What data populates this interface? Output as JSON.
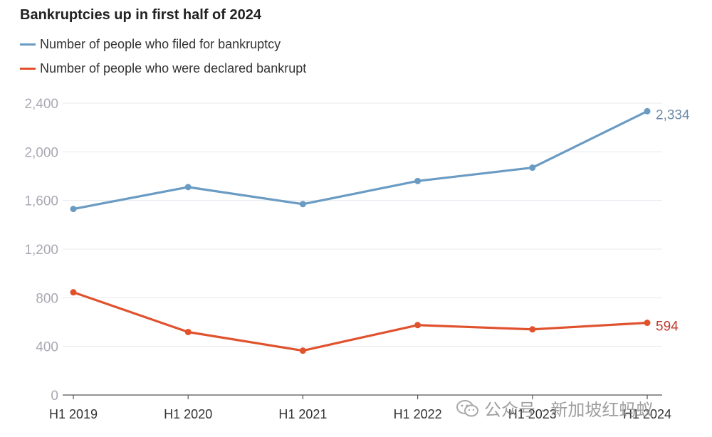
{
  "chart_data": {
    "type": "line",
    "title": "Bankruptcies up in first half of 2024",
    "categories": [
      "H1 2019",
      "H1 2020",
      "H1 2021",
      "H1 2022",
      "H1 2023",
      "H1 2024"
    ],
    "series": [
      {
        "name": "Number of people who filed for bankruptcy",
        "color": "#6a9bc3",
        "values": [
          1530,
          1710,
          1570,
          1760,
          1870,
          2334
        ],
        "end_label": "2,334"
      },
      {
        "name": "Number of people who were declared bankrupt",
        "color": "#e0522e",
        "values": [
          845,
          518,
          365,
          575,
          540,
          594
        ],
        "end_label": "594"
      }
    ],
    "ylim": [
      0,
      2400
    ],
    "yticks": [
      0,
      400,
      800,
      1200,
      1600,
      2000,
      2400
    ],
    "ytick_labels": [
      "0",
      "400",
      "800",
      "1,200",
      "1,600",
      "2,000",
      "2,400"
    ],
    "grid": true,
    "legend_position": "top-left"
  },
  "watermark": {
    "text": "公众号 · 新加坡红蚂蚁",
    "icon": "wechat-icon"
  }
}
